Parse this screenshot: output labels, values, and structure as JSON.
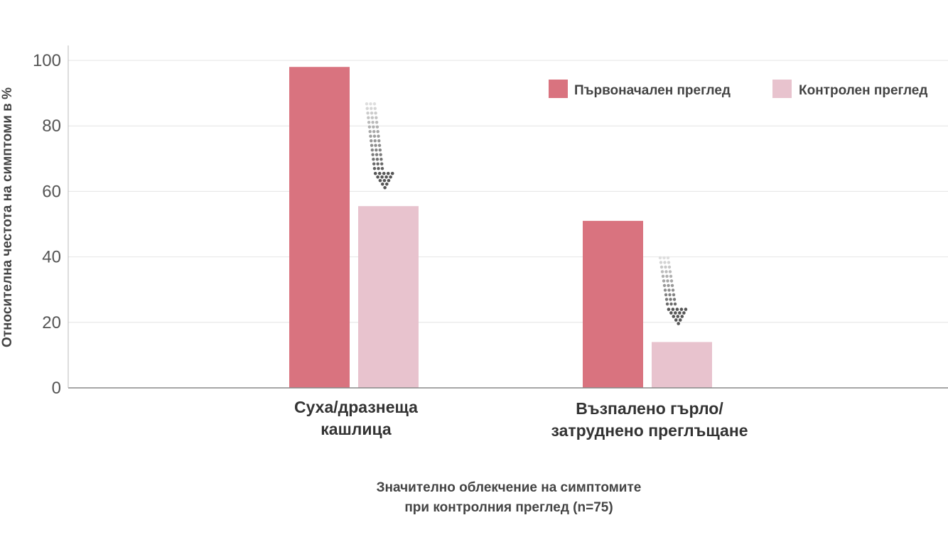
{
  "chart_data": {
    "type": "bar",
    "categories": [
      "Суха/дразнеща кашлица",
      "Възпалено гърло/ затруднено преглъщане"
    ],
    "category_lines": [
      [
        "Суха/дразнеща",
        "кашлица"
      ],
      [
        "Възпалено гърло/",
        "затруднено преглъщане"
      ]
    ],
    "series": [
      {
        "name": "Първоначален преглед",
        "values": [
          98,
          51
        ],
        "color": "#d9737f"
      },
      {
        "name": "Контролен преглед",
        "values": [
          55.5,
          14
        ],
        "color": "#e8c3ce"
      }
    ],
    "ylabel": "Относителна честота на симптоми в %",
    "xlabel_lines": [
      "Значително облекчение на симптомите",
      "при контролния преглед (n=75)"
    ],
    "ylim": [
      0,
      100
    ],
    "yticks": [
      0,
      20,
      40,
      60,
      80,
      100
    ],
    "grid": true,
    "legend": "top-right",
    "annotations": [
      "downward-dotted-arrow",
      "downward-dotted-arrow"
    ]
  }
}
